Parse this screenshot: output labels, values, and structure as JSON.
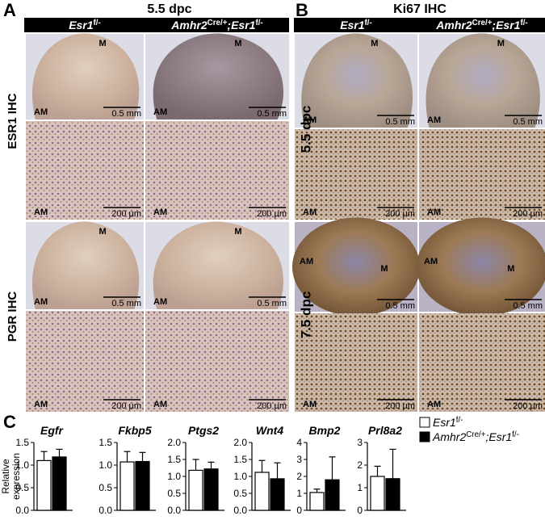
{
  "panels": [
    {
      "letter": "A",
      "title": "5.5 dpc",
      "columns": [
        [
          "Esr1",
          "f/-"
        ],
        [
          "Amhr2",
          "Cre/+",
          ";Esr1",
          "f/-"
        ]
      ],
      "groups": [
        {
          "label": "ESR1 IHC",
          "rows": [
            [
              {
                "top": "M",
                "bottom": "AM",
                "scale": "0.5 mm"
              },
              {
                "top": "M",
                "bottom": "AM",
                "scale": "0.5 mm"
              }
            ],
            [
              {
                "bottom": "AM",
                "scale": "200 µm"
              },
              {
                "bottom": "AM",
                "scale": "200 µm"
              }
            ]
          ]
        },
        {
          "label": "PGR IHC",
          "rows": [
            [
              {
                "top": "M",
                "bottom": "AM",
                "scale": "0.5 mm"
              },
              {
                "top": "M",
                "bottom": "AM",
                "scale": "0.5 mm"
              }
            ],
            [
              {
                "bottom": "AM",
                "scale": "200 µm"
              },
              {
                "bottom": "AM",
                "scale": "200 µm"
              }
            ]
          ]
        }
      ]
    },
    {
      "letter": "B",
      "title": "Ki67 IHC",
      "columns": [
        [
          "Esr1",
          "f/-"
        ],
        [
          "Amhr2",
          "Cre/+",
          ";Esr1",
          "f/-"
        ]
      ],
      "groups": [
        {
          "label": "5.5 dpc",
          "rows": [
            [
              {
                "top": "M",
                "bottom": "AM",
                "scale": "0.5 mm"
              },
              {
                "top": "M",
                "bottom": "AM",
                "scale": "0.5 mm"
              }
            ],
            [
              {
                "bottom": "AM",
                "scale": "200 µm"
              },
              {
                "bottom": "AM",
                "scale": "200 µm"
              }
            ]
          ]
        },
        {
          "label": "7.5 dpc",
          "rows": [
            [
              {
                "left": "AM",
                "right": "M",
                "scale": "0.5 mm"
              },
              {
                "left": "AM",
                "right": "M",
                "scale": "0.5 mm"
              }
            ],
            [
              {
                "bottom": "AM",
                "scale": "200 µm"
              },
              {
                "bottom": "AM",
                "scale": "200 µm"
              }
            ]
          ]
        }
      ]
    }
  ],
  "panel_c": {
    "letter": "C",
    "ylabel": [
      "Relative",
      "expression"
    ],
    "legend": [
      {
        "parts": [
          "Esr1",
          "f/-"
        ],
        "color": "#ffffff"
      },
      {
        "parts": [
          "Amhr2",
          "Cre/+",
          ";Esr1",
          "f/-"
        ],
        "color": "#000000"
      }
    ]
  },
  "chart_data": [
    {
      "type": "bar",
      "title": "Egfr",
      "values": [
        1.1,
        1.18
      ],
      "errors": [
        0.2,
        0.17
      ],
      "ylim": [
        0,
        1.5
      ],
      "yticks": [
        {
          "value": 0,
          "label": "0.0"
        },
        {
          "value": 0.5,
          "label": "0.5"
        },
        {
          "value": 1,
          "label": "1.0"
        },
        {
          "value": 1.5,
          "label": "1.5"
        }
      ]
    },
    {
      "type": "bar",
      "title": "Fkbp5",
      "values": [
        1.07,
        1.08
      ],
      "errors": [
        0.23,
        0.2
      ],
      "ylim": [
        0,
        1.5
      ],
      "yticks": [
        {
          "value": 0,
          "label": "0.0"
        },
        {
          "value": 0.5,
          "label": "0.5"
        },
        {
          "value": 1,
          "label": "1.0"
        },
        {
          "value": 1.5,
          "label": "1.5"
        }
      ]
    },
    {
      "type": "bar",
      "title": "Ptgs2",
      "values": [
        1.18,
        1.22
      ],
      "errors": [
        0.32,
        0.2
      ],
      "ylim": [
        0,
        2
      ],
      "yticks": [
        {
          "value": 0,
          "label": "0.0"
        },
        {
          "value": 0.5,
          "label": "0.5"
        },
        {
          "value": 1,
          "label": "1.0"
        },
        {
          "value": 1.5,
          "label": "1.5"
        },
        {
          "value": 2,
          "label": "2.0"
        }
      ]
    },
    {
      "type": "bar",
      "title": "Wnt4",
      "values": [
        1.12,
        0.93
      ],
      "errors": [
        0.35,
        0.47
      ],
      "ylim": [
        0,
        2
      ],
      "yticks": [
        {
          "value": 0,
          "label": "0.0"
        },
        {
          "value": 0.5,
          "label": "0.5"
        },
        {
          "value": 1,
          "label": "1.0"
        },
        {
          "value": 1.5,
          "label": "1.5"
        },
        {
          "value": 2,
          "label": "2.0"
        }
      ]
    },
    {
      "type": "bar",
      "title": "Bmp2",
      "values": [
        1.05,
        1.8
      ],
      "errors": [
        0.2,
        1.35
      ],
      "ylim": [
        0,
        4
      ],
      "yticks": [
        0,
        1,
        2,
        3,
        4
      ]
    },
    {
      "type": "bar",
      "title": "Prl8a2",
      "values": [
        1.5,
        1.4
      ],
      "errors": [
        0.45,
        1.3
      ],
      "ylim": [
        0,
        3
      ],
      "yticks": [
        0,
        1,
        2,
        3
      ]
    }
  ]
}
